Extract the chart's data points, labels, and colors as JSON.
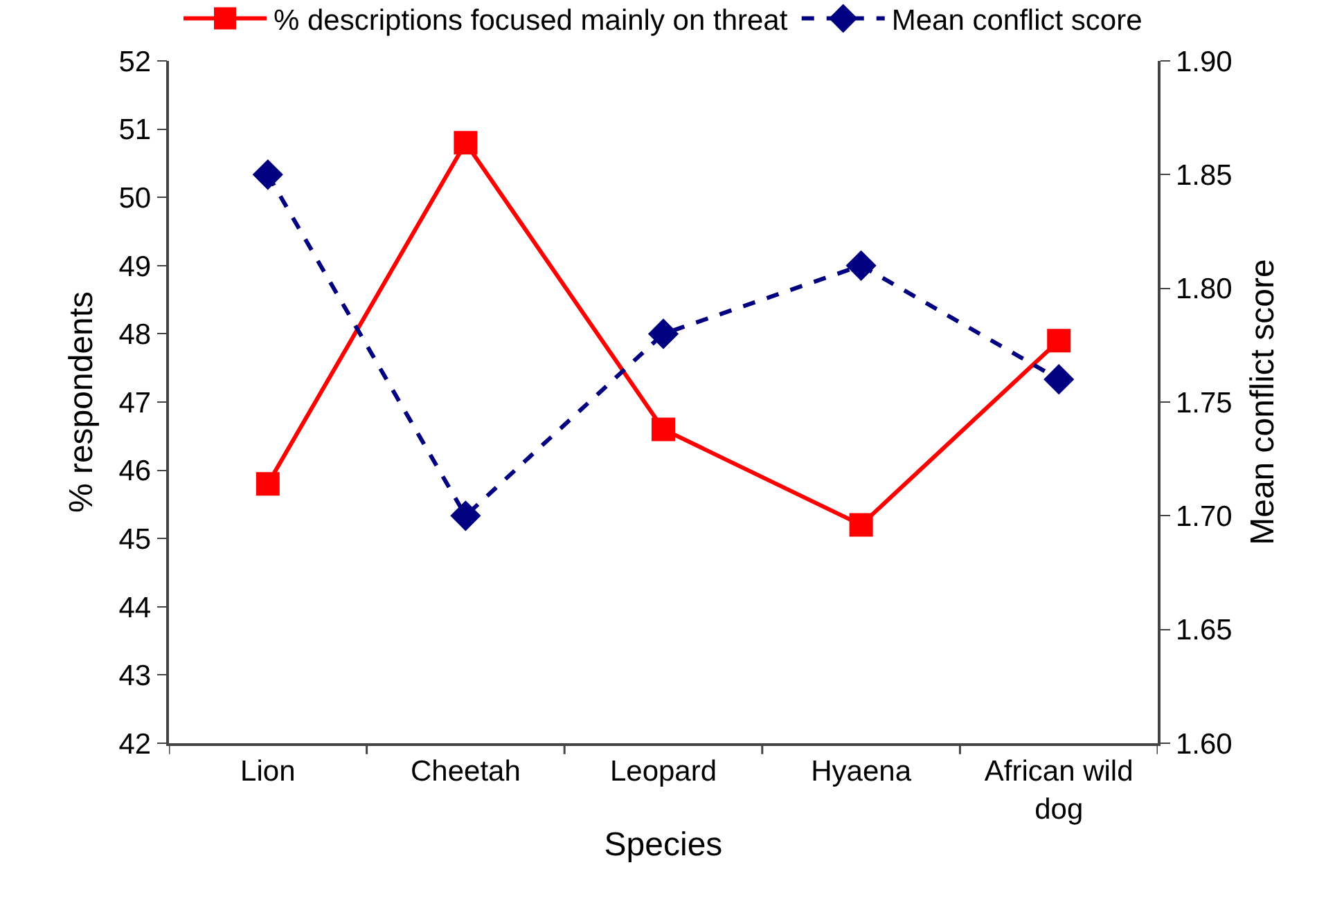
{
  "chart_data": {
    "type": "line",
    "xlabel": "Species",
    "ylabel": "% respondents",
    "y2label": "Mean conflict score",
    "categories": [
      "Lion",
      "Cheetah",
      "Leopard",
      "Hyaena",
      "African wild dog"
    ],
    "series": [
      {
        "name": "% descriptions focused mainly on threat",
        "color": "#ff0000",
        "values": [
          45.8,
          50.8,
          46.6,
          45.2,
          47.9
        ],
        "marker": "square",
        "line_style": "solid"
      },
      {
        "name": "Mean conflict score",
        "color": "#000080",
        "values": [
          1.85,
          1.7,
          1.78,
          1.81,
          1.76
        ],
        "axis": "y2",
        "marker": "diamond",
        "line_style": "dashed"
      }
    ],
    "ylim": [
      42,
      52
    ],
    "yticks": [
      42,
      43,
      44,
      45,
      46,
      47,
      48,
      49,
      50,
      51,
      52
    ],
    "y2lim": [
      1.6,
      1.9
    ],
    "y2ticks": [
      {
        "value": 1.6,
        "label": "1.60"
      },
      1.65,
      {
        "value": 1.7,
        "label": "1.70"
      },
      1.75,
      {
        "value": 1.8,
        "label": "1.80"
      },
      1.85,
      {
        "value": 1.9,
        "label": "1.90"
      }
    ],
    "grid": false,
    "legend": "top"
  }
}
